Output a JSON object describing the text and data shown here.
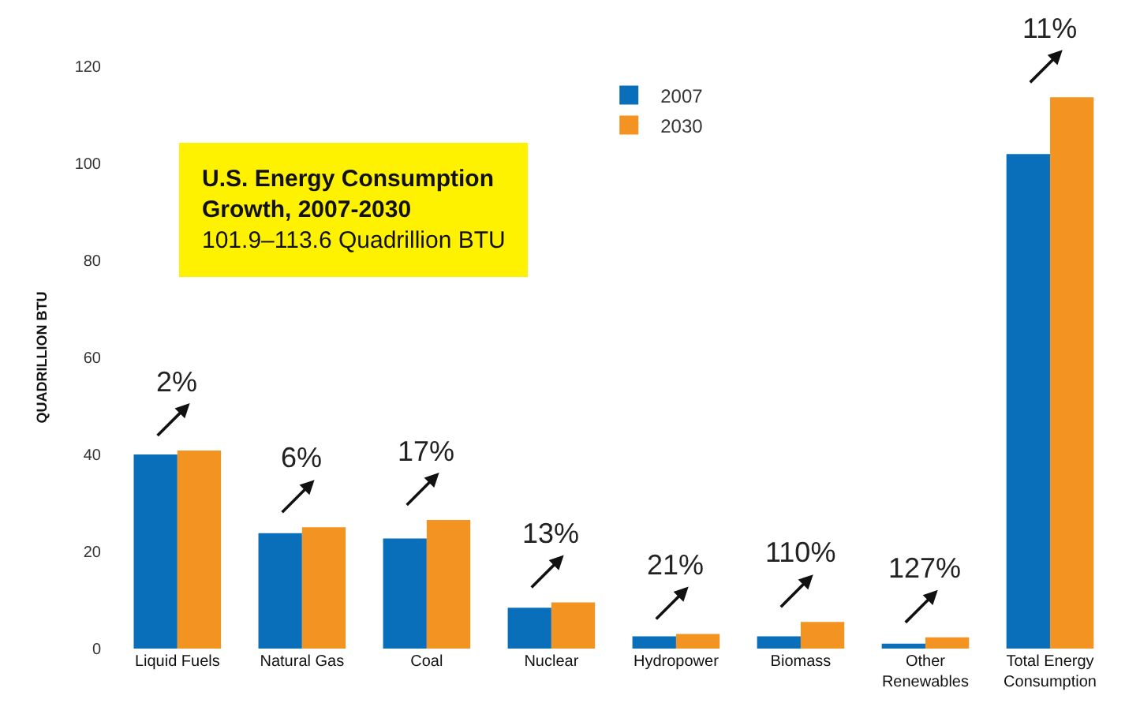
{
  "chart_data": {
    "type": "bar",
    "title": "U.S. Energy Consumption Growth, 2007-2030",
    "subtitle": "101.9–113.6 Quadrillion BTU",
    "ylabel": "QUADRILLION BTU",
    "categories": [
      "Liquid Fuels",
      "Natural Gas",
      "Coal",
      "Nuclear",
      "Hydropower",
      "Biomass",
      "Other Renewables",
      "Total Energy Consumption"
    ],
    "series": [
      {
        "name": "2007",
        "color": "#0a6fba",
        "values": [
          40,
          23.8,
          22.7,
          8.4,
          2.5,
          2.5,
          1.0,
          101.9
        ]
      },
      {
        "name": "2030",
        "color": "#f39321",
        "values": [
          40.8,
          25,
          26.5,
          9.5,
          3.0,
          5.5,
          2.3,
          113.6
        ]
      }
    ],
    "annotations": [
      {
        "text": "2%",
        "x": "Liquid Fuels",
        "y": 40.8
      },
      {
        "text": "6%",
        "x": "Natural Gas",
        "y": 25
      },
      {
        "text": "17%",
        "x": "Coal",
        "y": 26.5
      },
      {
        "text": "13%",
        "x": "Nuclear",
        "y": 9.5
      },
      {
        "text": "21%",
        "x": "Hydropower",
        "y": 3.0
      },
      {
        "text": "110%",
        "x": "Biomass",
        "y": 5.5
      },
      {
        "text": "127%",
        "x": "Other Renewables",
        "y": 2.3
      },
      {
        "text": "11%",
        "x": "Total Energy Consumption",
        "y": 113.6
      }
    ],
    "ylim": [
      0,
      120
    ],
    "yticks": [
      0,
      20,
      40,
      60,
      80,
      100,
      120
    ],
    "legend": "top"
  }
}
